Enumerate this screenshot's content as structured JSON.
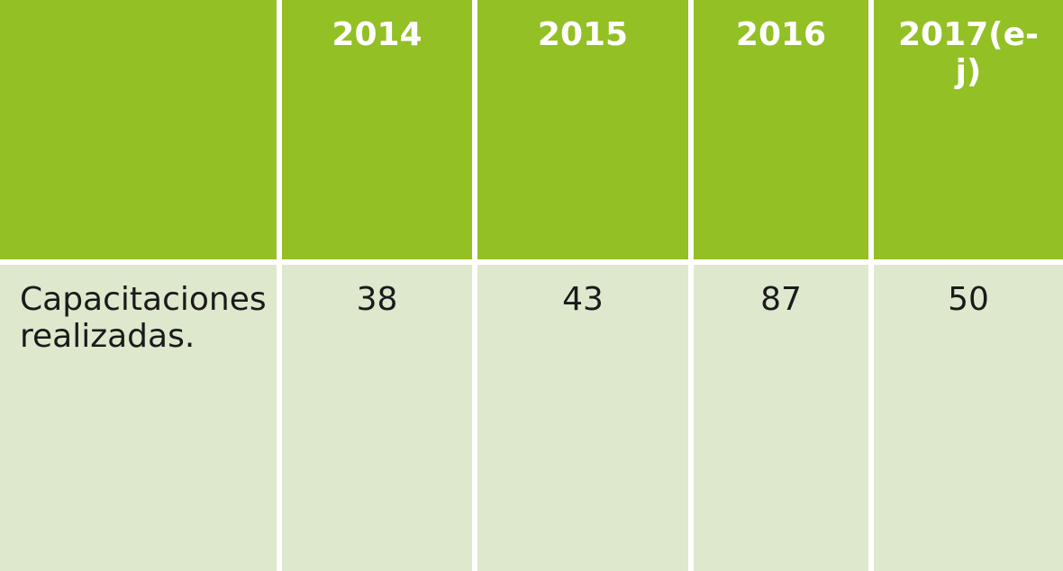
{
  "table": {
    "header": [
      "",
      "2014",
      "2015",
      "2016",
      "2017(e-j)"
    ],
    "rows": [
      [
        "Capacitaciones realizadas.",
        "38",
        "43",
        "87",
        "50"
      ]
    ]
  }
}
